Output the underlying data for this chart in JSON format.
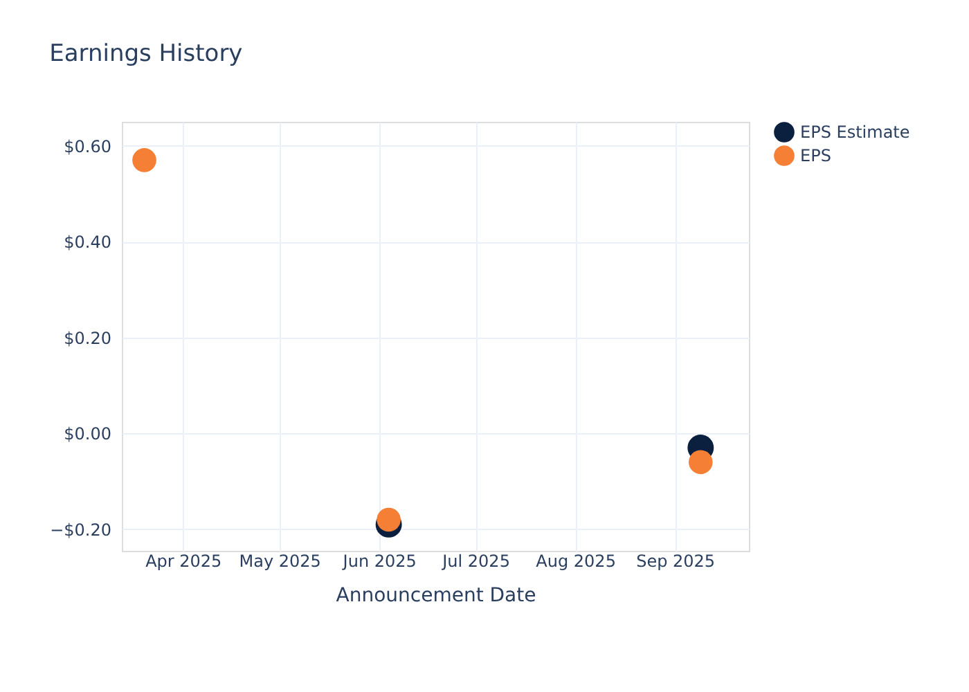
{
  "chart_data": {
    "type": "scatter",
    "title": "Earnings History",
    "xlabel": "Announcement Date",
    "x": [
      "2025-03-20",
      "2025-06-04",
      "2025-09-09"
    ],
    "series": [
      {
        "name": "EPS Estimate",
        "color": "#0b1f3f",
        "values": [
          null,
          -0.19,
          -0.03
        ]
      },
      {
        "name": "EPS",
        "color": "#f47f35",
        "values": [
          0.57,
          -0.18,
          -0.06
        ]
      }
    ],
    "xlim": [
      "2025-03-13",
      "2025-09-24"
    ],
    "xticks": [
      {
        "value": "2025-04-01",
        "label": "Apr 2025"
      },
      {
        "value": "2025-05-01",
        "label": "May 2025"
      },
      {
        "value": "2025-06-01",
        "label": "Jun 2025"
      },
      {
        "value": "2025-07-01",
        "label": "Jul 2025"
      },
      {
        "value": "2025-08-01",
        "label": "Aug 2025"
      },
      {
        "value": "2025-09-01",
        "label": "Sep 2025"
      }
    ],
    "ylim": [
      -0.245,
      0.65
    ],
    "yticks": [
      {
        "value": -0.2,
        "label": "−$0.20"
      },
      {
        "value": 0,
        "label": "$0.00"
      },
      {
        "value": 0.2,
        "label": "$0.20"
      },
      {
        "value": 0.4,
        "label": "$0.40"
      },
      {
        "value": 0.6,
        "label": "$0.60"
      }
    ],
    "grid": true,
    "legend": "top right",
    "marker": "circle"
  }
}
